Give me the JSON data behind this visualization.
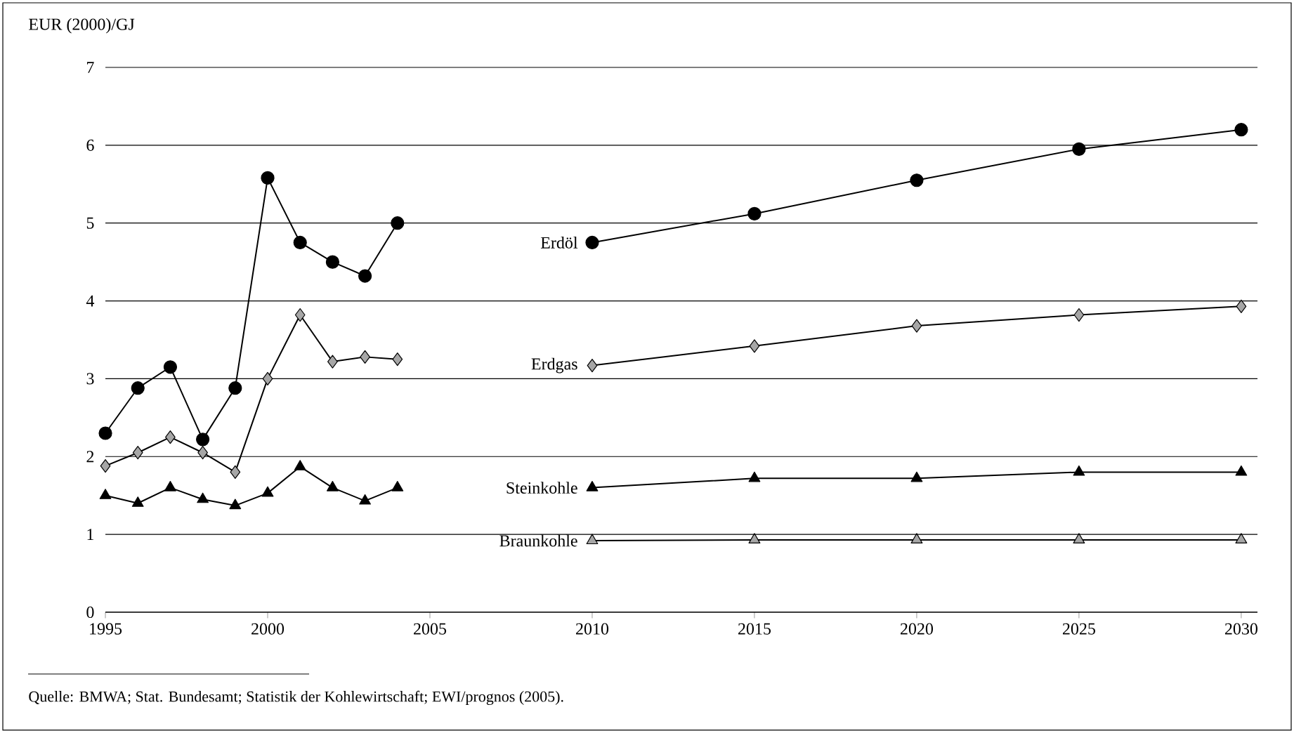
{
  "chart_data": {
    "type": "line",
    "ylabel": "EUR (2000)/GJ",
    "x": [
      1995,
      1996,
      1997,
      1998,
      1999,
      2000,
      2001,
      2002,
      2003,
      2004,
      2007,
      2010,
      2015,
      2020,
      2025,
      2030
    ],
    "series": [
      {
        "name": "Erdöl",
        "color": "#000000",
        "marker": "circle",
        "values": [
          2.3,
          2.88,
          3.15,
          2.22,
          2.88,
          5.58,
          4.75,
          4.5,
          4.32,
          5.0,
          null,
          4.75,
          5.12,
          5.55,
          5.95,
          6.2
        ]
      },
      {
        "name": "Erdgas",
        "color": "#a6a6a6",
        "marker": "diamond",
        "values": [
          1.88,
          2.05,
          2.25,
          2.05,
          1.8,
          3.0,
          3.82,
          3.22,
          3.28,
          3.25,
          null,
          3.17,
          3.42,
          3.68,
          3.82,
          3.93
        ]
      },
      {
        "name": "Steinkohle",
        "color": "#000000",
        "marker": "triangle",
        "values": [
          1.5,
          1.4,
          1.6,
          1.45,
          1.37,
          1.53,
          1.87,
          1.6,
          1.43,
          1.6,
          null,
          1.6,
          1.72,
          1.72,
          1.8,
          1.8
        ]
      },
      {
        "name": "Braunkohle",
        "color": "#a6a6a6",
        "marker": "triangle",
        "values": [
          null,
          null,
          null,
          null,
          null,
          null,
          null,
          null,
          null,
          null,
          null,
          0.92,
          0.93,
          0.93,
          0.93,
          0.93
        ]
      }
    ],
    "xlim": [
      1995,
      2030.5
    ],
    "xticks": [
      1995,
      2000,
      2005,
      2010,
      2015,
      2020,
      2025,
      2030
    ],
    "ylim": [
      0,
      7
    ],
    "yticks": [
      0,
      1,
      2,
      3,
      4,
      5,
      6,
      7
    ],
    "grid": "y",
    "annotations": [
      "Quelle: BMWA; Stat. Bundesamt; Statistik der Kohlewirtschaft; EWI/prognos (2005)."
    ]
  }
}
